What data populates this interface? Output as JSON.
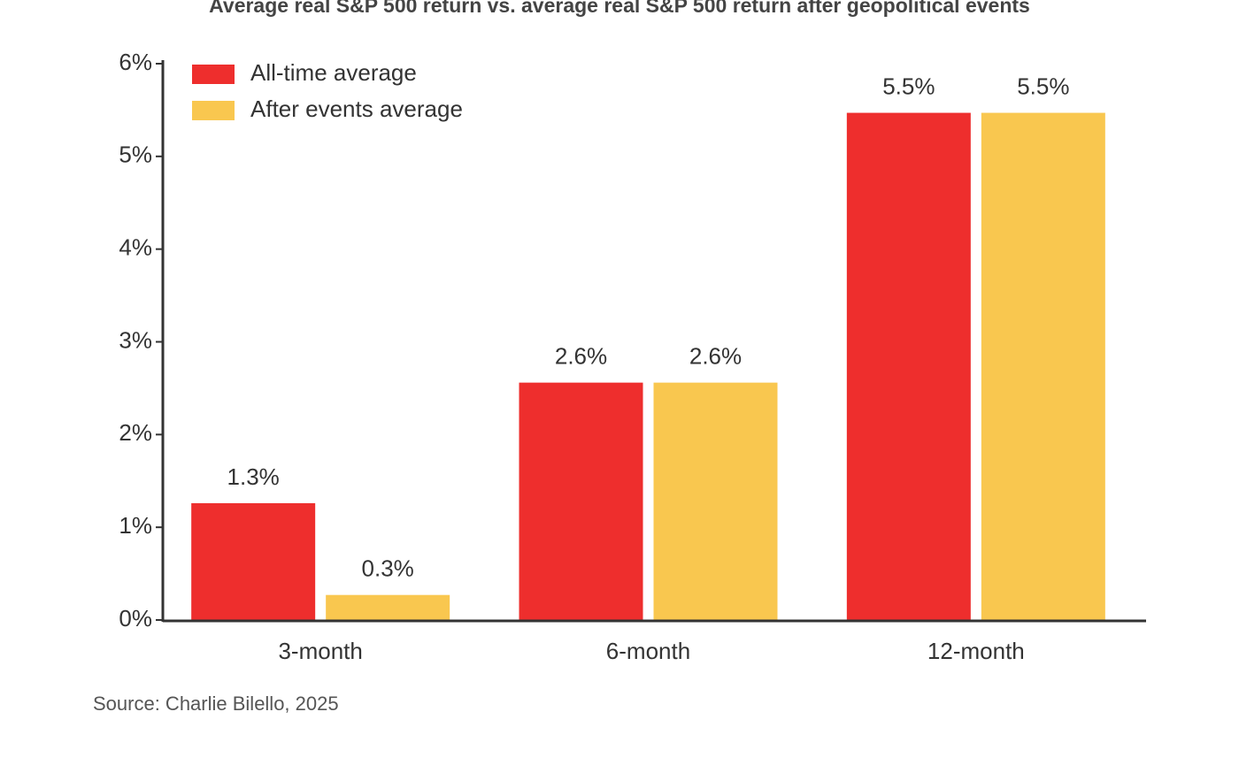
{
  "chart_data": {
    "type": "bar",
    "title": "Average real S&P 500 return vs. average real S&P 500 return after geopolitical events",
    "source": "Source: Charlie Bilello, 2025",
    "categories": [
      "3-month",
      "6-month",
      "12-month"
    ],
    "series": [
      {
        "name": "All-time average",
        "color": "#ee2e2d",
        "values": [
          1.26,
          2.56,
          5.47
        ],
        "value_labels": [
          "1.3%",
          "2.6%",
          "5.5%"
        ]
      },
      {
        "name": "After events average",
        "color": "#f9c74f",
        "values": [
          0.27,
          2.56,
          5.47
        ],
        "value_labels": [
          "0.3%",
          "2.6%",
          "5.5%"
        ]
      }
    ],
    "ylim": [
      0,
      6
    ],
    "yticks": [
      {
        "value": 0,
        "label": "0%"
      },
      {
        "value": 1,
        "label": "1%"
      },
      {
        "value": 2,
        "label": "2%"
      },
      {
        "value": 3,
        "label": "3%"
      },
      {
        "value": 4,
        "label": "4%"
      },
      {
        "value": 5,
        "label": "5%"
      },
      {
        "value": 6,
        "label": "6%"
      }
    ],
    "legend": "upper left"
  }
}
